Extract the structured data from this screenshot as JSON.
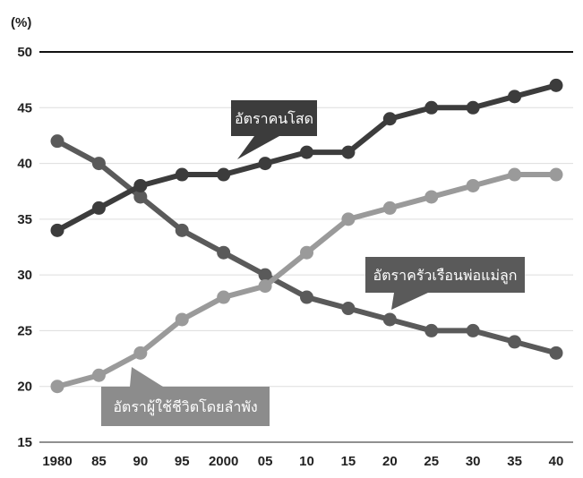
{
  "chart_data": {
    "type": "line",
    "unit_label": "(%)",
    "categories": [
      "1980",
      "85",
      "90",
      "95",
      "2000",
      "05",
      "10",
      "15",
      "20",
      "25",
      "30",
      "35",
      "40"
    ],
    "ylim": [
      15,
      50
    ],
    "yticks": [
      15,
      20,
      25,
      30,
      35,
      40,
      45,
      50
    ],
    "grid": true,
    "series": [
      {
        "name": "อัตราคนโสด",
        "color": "#3c3c3c",
        "values": [
          34,
          36,
          38,
          39,
          39,
          40,
          41,
          41,
          44,
          45,
          45,
          46,
          47
        ]
      },
      {
        "name": "อัตราครัวเรือนพ่อแม่ลูก",
        "color": "#5a5a5a",
        "values": [
          42,
          40,
          37,
          34,
          32,
          30,
          28,
          27,
          26,
          25,
          25,
          24,
          23
        ]
      },
      {
        "name": "อัตราผู้ใช้ชีวิตโดยลำพัง",
        "color": "#9a9a9a",
        "values": [
          20,
          21,
          23,
          26,
          28,
          29,
          32,
          35,
          36,
          37,
          38,
          39,
          39
        ]
      }
    ],
    "callouts": [
      {
        "text": "อัตราคนโสด",
        "series": 0,
        "bg": "#3c3c3c"
      },
      {
        "text": "อัตราครัวเรือนพ่อแม่ลูก",
        "series": 1,
        "bg": "#5a5a5a"
      },
      {
        "text": "อัตราผู้ใช้ชีวิตโดยลำพัง",
        "series": 2,
        "bg": "#8c8c8c"
      }
    ]
  }
}
